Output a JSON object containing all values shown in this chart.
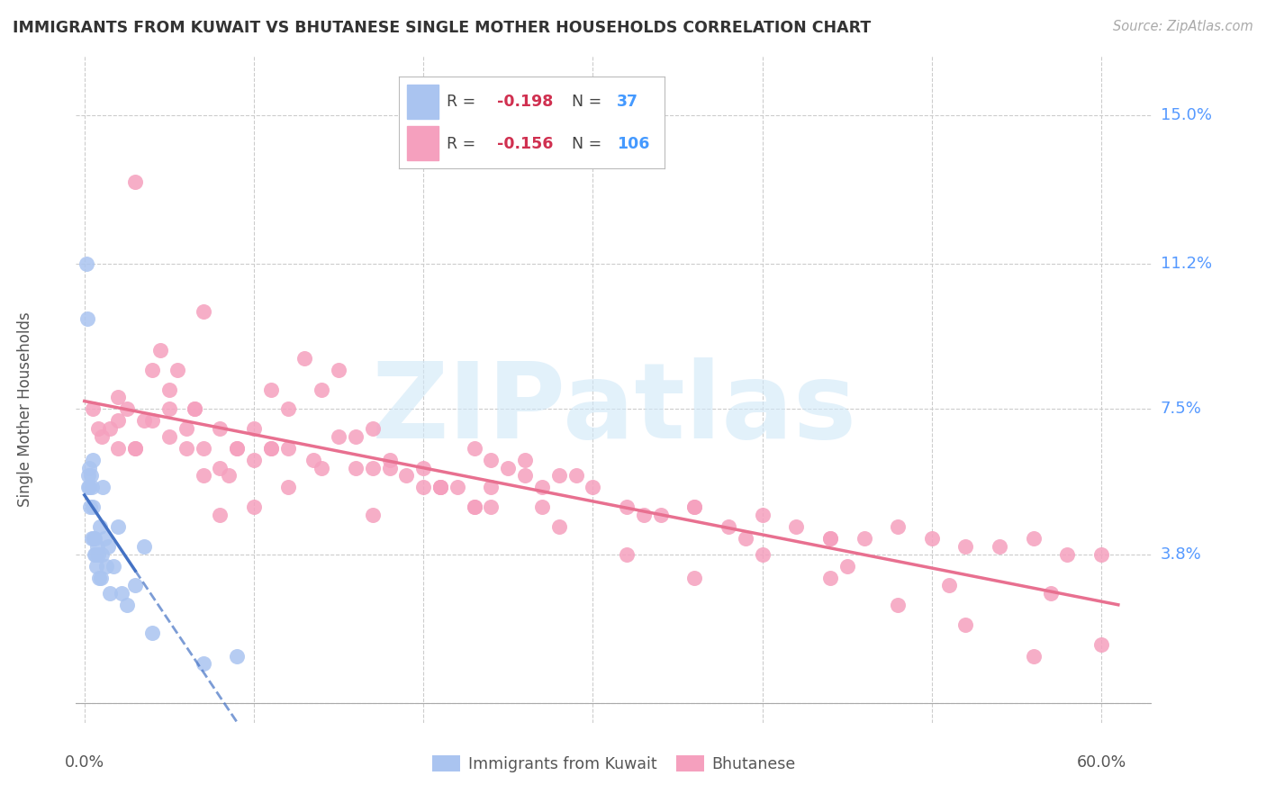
{
  "title": "IMMIGRANTS FROM KUWAIT VS BHUTANESE SINGLE MOTHER HOUSEHOLDS CORRELATION CHART",
  "source": "Source: ZipAtlas.com",
  "ylabel": "Single Mother Households",
  "ytick_vals": [
    0.0,
    3.8,
    7.5,
    11.2,
    15.0
  ],
  "ytick_labels": [
    "",
    "3.8%",
    "7.5%",
    "11.2%",
    "15.0%"
  ],
  "xtick_positions": [
    0.0,
    10.0,
    20.0,
    30.0,
    40.0,
    50.0,
    60.0
  ],
  "xlim": [
    -0.5,
    63.0
  ],
  "ylim": [
    -0.5,
    16.5
  ],
  "watermark_text": "ZIPatlas",
  "color_kuwait": "#aac4f0",
  "color_bhutan": "#f5a0be",
  "color_kuwait_line": "#4472c4",
  "color_bhutan_line": "#e87090",
  "kuwait_x": [
    0.1,
    0.15,
    0.2,
    0.25,
    0.3,
    0.3,
    0.35,
    0.4,
    0.45,
    0.45,
    0.5,
    0.5,
    0.55,
    0.6,
    0.6,
    0.65,
    0.7,
    0.75,
    0.8,
    0.85,
    0.9,
    0.95,
    1.0,
    1.1,
    1.2,
    1.3,
    1.4,
    1.5,
    1.7,
    2.0,
    2.2,
    2.5,
    3.0,
    3.5,
    4.0,
    7.0,
    9.0
  ],
  "kuwait_y": [
    11.2,
    9.8,
    5.8,
    5.5,
    6.0,
    5.5,
    5.0,
    5.8,
    4.2,
    5.5,
    6.2,
    5.0,
    4.2,
    4.2,
    3.8,
    3.8,
    3.5,
    4.0,
    3.8,
    3.2,
    4.5,
    3.2,
    3.8,
    5.5,
    4.2,
    3.5,
    4.0,
    2.8,
    3.5,
    4.5,
    2.8,
    2.5,
    3.0,
    4.0,
    1.8,
    1.0,
    1.2
  ],
  "bhutan_x": [
    0.5,
    0.8,
    1.0,
    1.5,
    2.0,
    2.0,
    2.5,
    3.0,
    3.5,
    4.0,
    4.5,
    5.0,
    5.5,
    6.0,
    6.5,
    7.0,
    8.0,
    8.5,
    9.0,
    10.0,
    11.0,
    12.0,
    13.0,
    14.0,
    15.0,
    16.0,
    17.0,
    18.0,
    19.0,
    20.0,
    21.0,
    22.0,
    23.0,
    24.0,
    25.0,
    26.0,
    27.0,
    28.0,
    30.0,
    32.0,
    34.0,
    36.0,
    38.0,
    40.0,
    42.0,
    44.0,
    46.0,
    48.0,
    50.0,
    52.0,
    54.0,
    56.0,
    58.0,
    60.0,
    3.0,
    5.0,
    7.0,
    9.0,
    11.0,
    14.0,
    17.0,
    20.0,
    24.0,
    28.0,
    32.0,
    36.0,
    40.0,
    44.0,
    48.0,
    52.0,
    56.0,
    60.0,
    2.0,
    4.0,
    6.5,
    8.0,
    11.0,
    13.5,
    18.0,
    23.0,
    6.0,
    7.0,
    10.0,
    12.0,
    16.0,
    21.0,
    27.0,
    33.0,
    39.0,
    45.0,
    51.0,
    57.0,
    26.0,
    23.0,
    15.0,
    24.0,
    29.0,
    36.0,
    44.0,
    3.0,
    5.0,
    8.0,
    10.0,
    12.0,
    17.0,
    21.0
  ],
  "bhutan_y": [
    7.5,
    7.0,
    6.8,
    7.0,
    7.2,
    6.5,
    7.5,
    6.5,
    7.2,
    8.5,
    9.0,
    8.0,
    8.5,
    7.0,
    7.5,
    6.5,
    6.0,
    5.8,
    6.5,
    7.0,
    8.0,
    7.5,
    8.8,
    8.0,
    8.5,
    6.8,
    7.0,
    6.2,
    5.8,
    6.0,
    5.5,
    5.5,
    6.5,
    5.5,
    6.0,
    5.8,
    5.5,
    5.8,
    5.5,
    5.0,
    4.8,
    5.0,
    4.5,
    4.8,
    4.5,
    4.2,
    4.2,
    4.5,
    4.2,
    4.0,
    4.0,
    4.2,
    3.8,
    3.8,
    13.3,
    7.5,
    10.0,
    6.5,
    6.5,
    6.0,
    6.0,
    5.5,
    5.0,
    4.5,
    3.8,
    3.2,
    3.8,
    3.2,
    2.5,
    2.0,
    1.2,
    1.5,
    7.8,
    7.2,
    7.5,
    7.0,
    6.5,
    6.2,
    6.0,
    5.0,
    6.5,
    5.8,
    6.2,
    6.5,
    6.0,
    5.5,
    5.0,
    4.8,
    4.2,
    3.5,
    3.0,
    2.8,
    6.2,
    5.0,
    6.8,
    6.2,
    5.8,
    5.0,
    4.2,
    6.5,
    6.8,
    4.8,
    5.0,
    5.5,
    4.8,
    5.5
  ]
}
